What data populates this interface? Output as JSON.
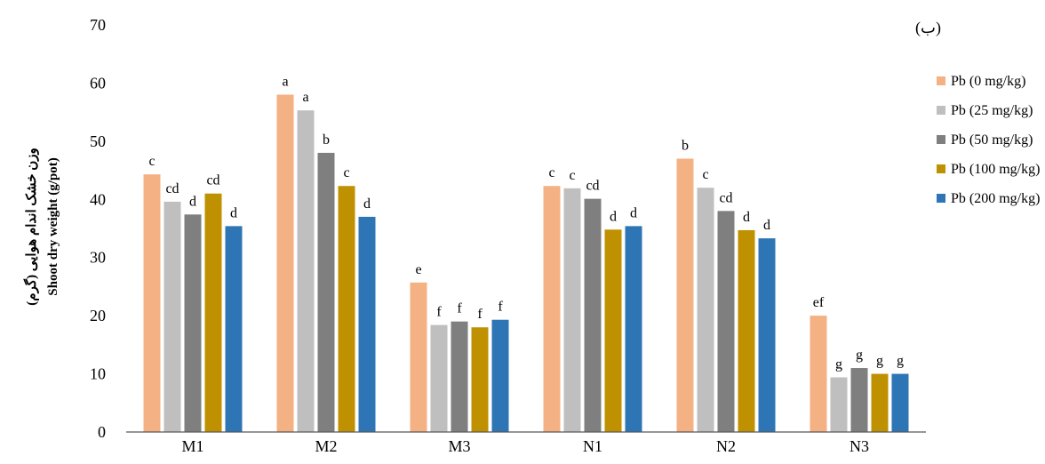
{
  "chart_data": {
    "type": "bar",
    "title": "",
    "panel_label": "(ب)",
    "ylabel_fa": "وزن خشک اندام هوایی (گرم)",
    "ylabel_en": "Shoot dry weight (g/pot)",
    "xlabel": "",
    "ylim": [
      0,
      70
    ],
    "yticks": [
      0,
      10,
      20,
      30,
      40,
      50,
      60,
      70
    ],
    "grid": false,
    "legend_position": "right",
    "categories": [
      "M1",
      "M2",
      "M3",
      "N1",
      "N2",
      "N3"
    ],
    "series": [
      {
        "name": "Pb (0 mg/kg)",
        "color": "#F4B183",
        "values": [
          44.3,
          58.0,
          25.7,
          42.3,
          47.0,
          20.0
        ],
        "labels": [
          "c",
          "a",
          "e",
          "c",
          "b",
          "ef"
        ]
      },
      {
        "name": "Pb (25 mg/kg)",
        "color": "#BFBFBF",
        "values": [
          39.6,
          55.3,
          18.4,
          41.9,
          42.0,
          9.4
        ],
        "labels": [
          "cd",
          "a",
          "f",
          "c",
          "c",
          "g"
        ]
      },
      {
        "name": "Pb (50 mg/kg)",
        "color": "#7F7F7F",
        "values": [
          37.4,
          48.0,
          19.0,
          40.1,
          38.0,
          11.0
        ],
        "labels": [
          "d",
          "b",
          "f",
          "cd",
          "cd",
          "g"
        ]
      },
      {
        "name": "Pb (100 mg/kg)",
        "color": "#BF9000",
        "values": [
          41.0,
          42.3,
          18.0,
          34.8,
          34.7,
          10.0
        ],
        "labels": [
          "cd",
          "c",
          "f",
          "d",
          "d",
          "g"
        ]
      },
      {
        "name": "Pb (200 mg/kg)",
        "color": "#2E75B6",
        "values": [
          35.4,
          37.0,
          19.3,
          35.4,
          33.3,
          10.0
        ],
        "labels": [
          "d",
          "d",
          "f",
          "d",
          "d",
          "g"
        ]
      }
    ]
  }
}
